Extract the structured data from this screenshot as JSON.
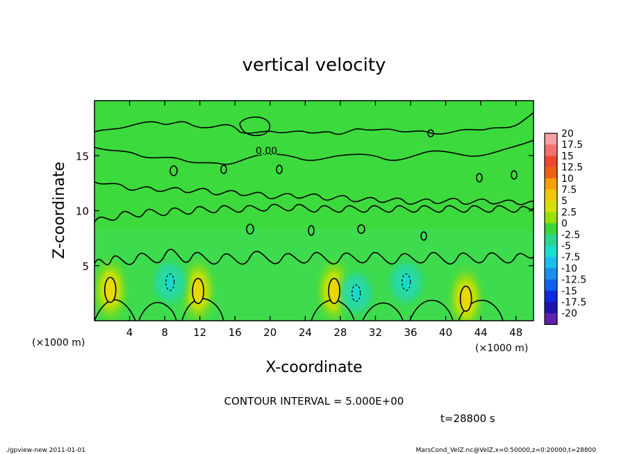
{
  "chart_data": {
    "type": "heatmap",
    "title": "vertical velocity",
    "xlabel": "X-coordinate",
    "ylabel": "Z-coordinate",
    "x_units": "(×1000 m)",
    "y_units": "(×1000 m)",
    "xlim": [
      0,
      50
    ],
    "ylim": [
      0,
      20
    ],
    "x_ticks": [
      "4",
      "8",
      "12",
      "16",
      "20",
      "24",
      "28",
      "32",
      "36",
      "40",
      "44",
      "48"
    ],
    "y_ticks": [
      "5",
      "10",
      "15"
    ],
    "contour_label": "0.00",
    "contour_interval": "CONTOUR INTERVAL = 5.000E+00",
    "colorbar": {
      "labels": [
        "20",
        "17.5",
        "15",
        "12.5",
        "10",
        "7.5",
        "5",
        "2.5",
        "0",
        "-2.5",
        "-5",
        "-7.5",
        "-10",
        "-12.5",
        "-15",
        "-17.5",
        "-20"
      ],
      "colors": [
        "#f9a0a0",
        "#f77070",
        "#f04830",
        "#f06018",
        "#f8a000",
        "#f0c800",
        "#d8e000",
        "#98e000",
        "#38d838",
        "#28d890",
        "#18e0d0",
        "#18c0f0",
        "#1890f0",
        "#1060f0",
        "#1028e0",
        "#2010b0",
        "#6020b0"
      ]
    },
    "updrafts": [
      {
        "x": 1.8,
        "z": 2.8,
        "w": 7.5
      },
      {
        "x": 11.8,
        "z": 2.7,
        "w": 7.5
      },
      {
        "x": 27.3,
        "z": 2.7,
        "w": 7.5
      },
      {
        "x": 42.3,
        "z": 2.0,
        "w": 7.5
      }
    ],
    "downdrafts": [
      {
        "x": 8.6,
        "z": 3.5,
        "w": -5
      },
      {
        "x": 29.8,
        "z": 2.5,
        "w": -5
      },
      {
        "x": 35.5,
        "z": 3.5,
        "w": -5
      }
    ],
    "time_label": "t=28800 s"
  },
  "footer": {
    "left": "./gpview-new  2011-01-01",
    "right": "MarsCond_VelZ.nc@VelZ,x=0:50000,z=0:20000,t=28800"
  }
}
